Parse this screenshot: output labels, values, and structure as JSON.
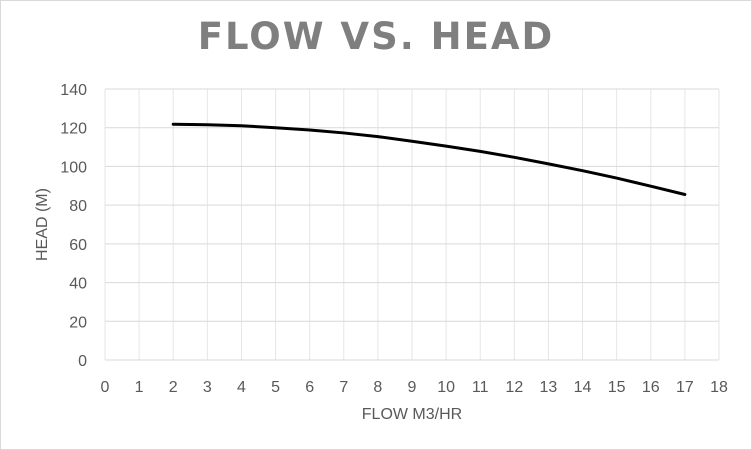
{
  "chart_data": {
    "type": "line",
    "title": "FLOW VS. HEAD",
    "xlabel": "FLOW M3/HR",
    "ylabel": "HEAD (M)",
    "xlim": [
      0,
      18
    ],
    "ylim": [
      0,
      140
    ],
    "x_ticks": [
      0,
      1,
      2,
      3,
      4,
      5,
      6,
      7,
      8,
      9,
      10,
      11,
      12,
      13,
      14,
      15,
      16,
      17,
      18
    ],
    "y_ticks": [
      0,
      20,
      40,
      60,
      80,
      100,
      120,
      140
    ],
    "grid": true,
    "legend": "none",
    "series": [
      {
        "color": "#000000",
        "x": [
          2,
          3,
          4,
          5,
          6,
          7,
          8,
          9,
          10,
          11,
          12,
          13,
          14,
          15,
          16,
          17
        ],
        "y": [
          121.8,
          121.5,
          121,
          120,
          118.8,
          117.3,
          115.4,
          113,
          110.5,
          107.8,
          104.7,
          101.3,
          97.8,
          94,
          89.8,
          85.5
        ]
      }
    ]
  }
}
